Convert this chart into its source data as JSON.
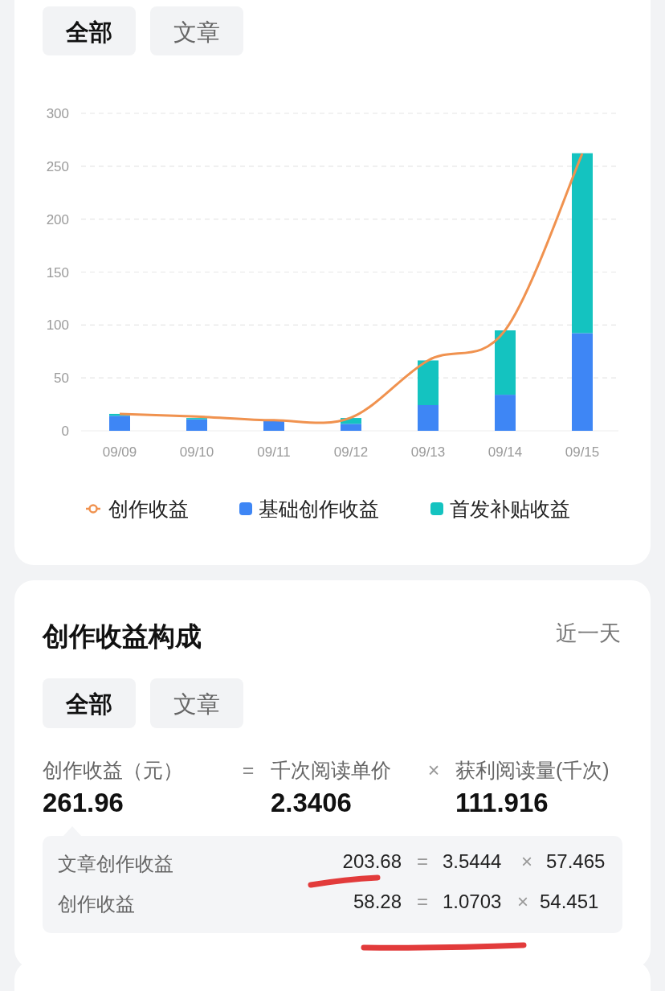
{
  "chart_data": {
    "type": "bar",
    "stacked": true,
    "categories": [
      "09/09",
      "09/10",
      "09/11",
      "09/12",
      "09/13",
      "09/14",
      "09/15"
    ],
    "series": [
      {
        "name": "创作收益",
        "type": "line",
        "color": "#f0924f",
        "values": [
          16,
          13.5,
          10,
          12.5,
          66.5,
          95,
          262
        ]
      },
      {
        "name": "基础创作收益",
        "color": "#3e86f5",
        "values": [
          14.2,
          10.9,
          9.6,
          6.6,
          24.3,
          34.1,
          92.3
        ]
      },
      {
        "name": "首发补贴收益",
        "color": "#14c3c0",
        "values": [
          1.8,
          1.2,
          0.4,
          5.5,
          42.2,
          60.8,
          170
        ]
      }
    ],
    "ylim": [
      0,
      300
    ],
    "yticks": [
      0,
      50,
      100,
      150,
      200,
      250,
      300
    ],
    "grid": "y",
    "legend": "bottom",
    "annotations": [
      "全部",
      "文章",
      "创作收益构成",
      "近一天",
      "全部",
      "文章",
      "创作收益（元）",
      "=",
      "千次阅读单价",
      "×",
      "获利阅读量(千次)",
      "261.96",
      "2.3406",
      "111.916",
      "文章创作收益",
      "203.68",
      "=",
      "3.5444",
      "×",
      "57.465",
      "创作收益",
      "58.28",
      "=",
      "1.0703",
      "×",
      "54.451"
    ]
  }
}
